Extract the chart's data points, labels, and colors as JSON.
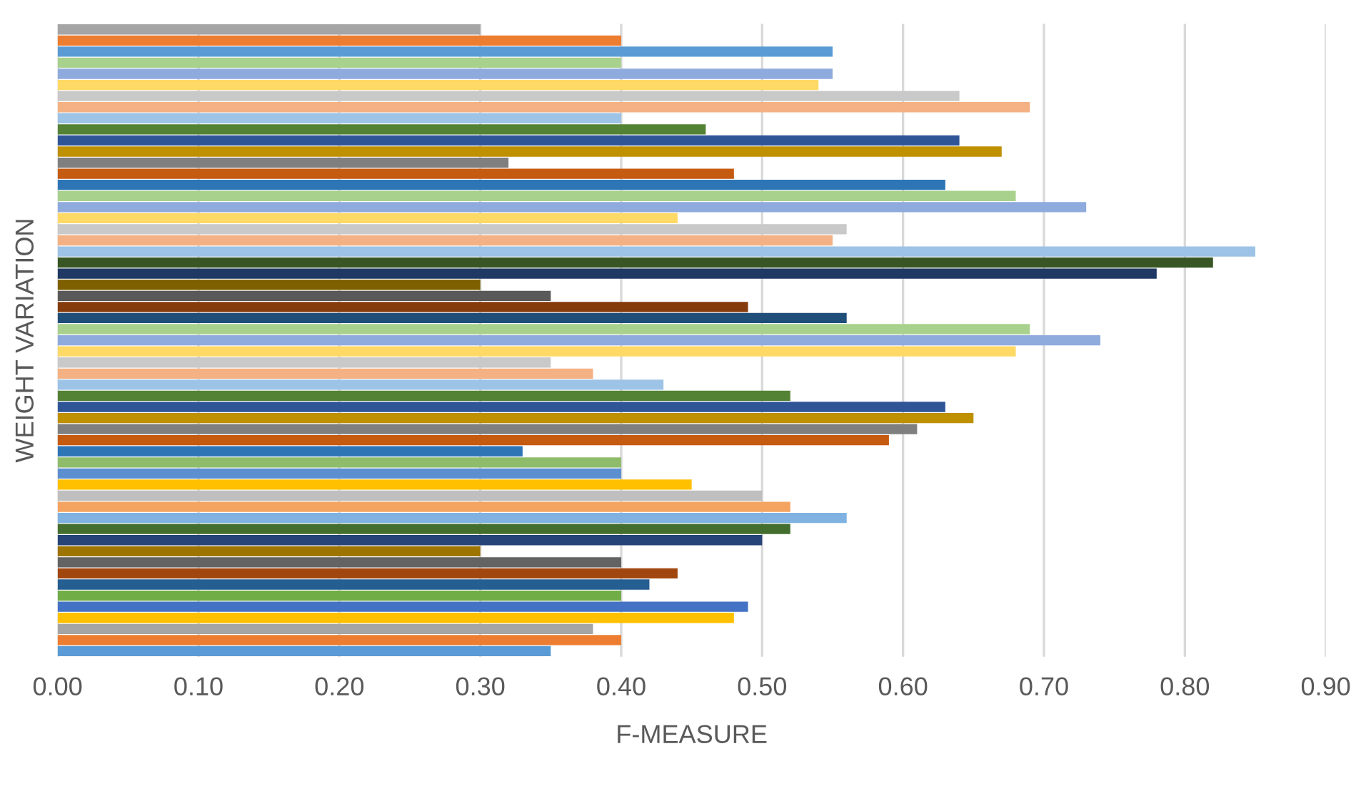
{
  "chart_data": {
    "type": "bar",
    "orientation": "horizontal",
    "xlabel": "F-MEASURE",
    "ylabel": "WEIGHT VARIATION",
    "categories": [
      null,
      null,
      null,
      null,
      null,
      null,
      null,
      null,
      null,
      null,
      null,
      null,
      null,
      null,
      null,
      null,
      null,
      null,
      null,
      null,
      null,
      null,
      null,
      null,
      null,
      null,
      null,
      null,
      null,
      null,
      null,
      null,
      null,
      null,
      null,
      null,
      null,
      null,
      null,
      null,
      null,
      null,
      null,
      null,
      null,
      null,
      null,
      null,
      null,
      null,
      null,
      null,
      null,
      null,
      null,
      null,
      null
    ],
    "values": [
      0.3,
      0.4,
      0.55,
      0.4,
      0.55,
      0.54,
      0.64,
      0.69,
      0.4,
      0.46,
      0.64,
      0.67,
      0.32,
      0.48,
      0.63,
      0.68,
      0.73,
      0.44,
      0.56,
      0.55,
      0.85,
      0.82,
      0.78,
      0.3,
      0.35,
      0.49,
      0.56,
      0.69,
      0.74,
      0.68,
      0.35,
      0.38,
      0.43,
      0.52,
      0.63,
      0.65,
      0.61,
      0.59,
      0.33,
      0.4,
      0.4,
      0.45,
      0.5,
      0.52,
      0.56,
      0.52,
      0.5,
      0.3,
      0.4,
      0.44,
      0.42,
      0.4,
      0.49,
      0.48,
      0.38,
      0.4,
      0.35
    ],
    "colors": [
      "#a5a5a5",
      "#ed7d31",
      "#5b9bd5",
      "#a9d18e",
      "#8faadc",
      "#ffd966",
      "#c9c9c9",
      "#f4b183",
      "#9dc3e6",
      "#548235",
      "#2f5597",
      "#bf9000",
      "#7f7f7f",
      "#c55a11",
      "#2e75b6",
      "#a9d18e",
      "#8faadc",
      "#ffd966",
      "#c9c9c9",
      "#f4b183",
      "#9dc3e6",
      "#375623",
      "#1f3864",
      "#7f6000",
      "#595959",
      "#843c0c",
      "#1f4e79",
      "#a9d18e",
      "#8faadc",
      "#ffd966",
      "#c9c9c9",
      "#f4b183",
      "#9dc3e6",
      "#548235",
      "#2f5597",
      "#bf9000",
      "#7f7f7f",
      "#c55a11",
      "#2e75b6",
      "#8fbc6b",
      "#5b8fd0",
      "#ffc000",
      "#bfbfbf",
      "#f4a460",
      "#7fb2e0",
      "#436e2e",
      "#264478",
      "#9e7400",
      "#636363",
      "#a0460e",
      "#255e91",
      "#70ad47",
      "#4472c4",
      "#ffc000",
      "#a5a5a5",
      "#ed7d31",
      "#5b9bd5"
    ],
    "xlim": [
      0,
      0.9
    ],
    "xticks": [
      {
        "value": 0,
        "label": "0.00"
      },
      {
        "value": 0.1,
        "label": "0.10"
      },
      {
        "value": 0.2,
        "label": "0.20"
      },
      {
        "value": 0.3,
        "label": "0.30"
      },
      {
        "value": 0.4,
        "label": "0.40"
      },
      {
        "value": 0.5,
        "label": "0.50"
      },
      {
        "value": 0.6,
        "label": "0.60"
      },
      {
        "value": 0.7,
        "label": "0.70"
      },
      {
        "value": 0.8,
        "label": "0.80"
      },
      {
        "value": 0.9,
        "label": "0.90"
      }
    ],
    "grid": "x",
    "tick_labels": "x"
  }
}
